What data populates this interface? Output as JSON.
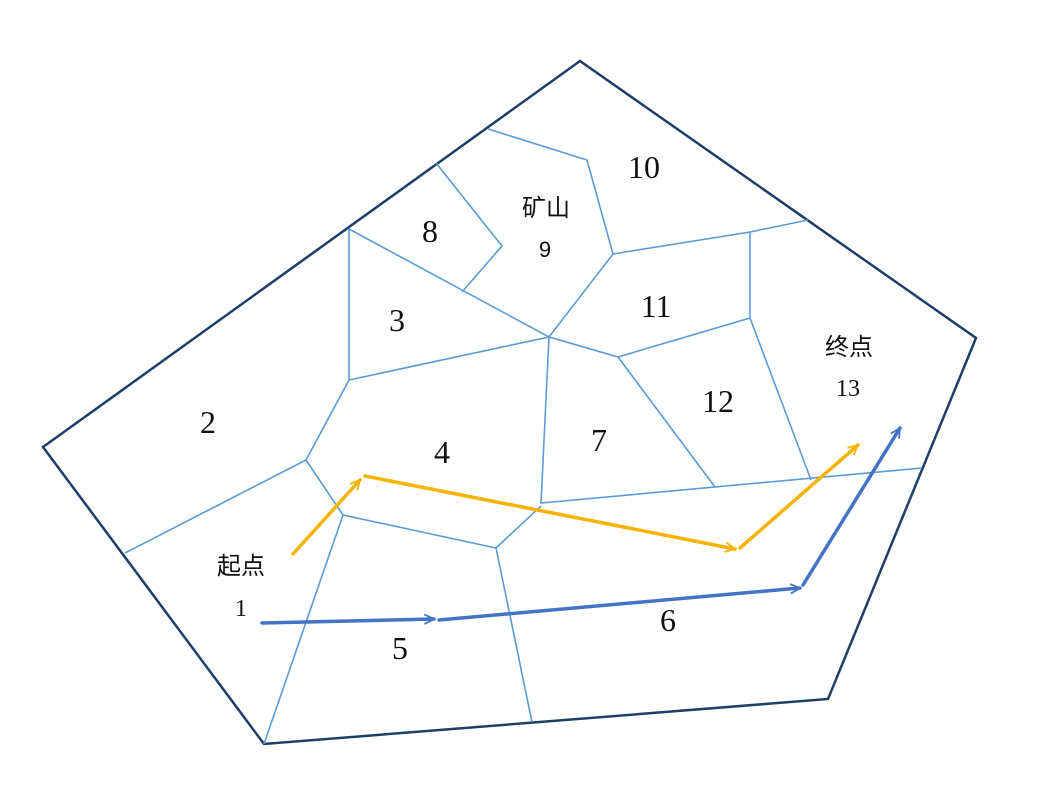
{
  "colors": {
    "outer_border": "#1f3e66",
    "inner_lines": "#5b9bd5",
    "yellow_route": "#f5b400",
    "blue_route": "#4472c4"
  },
  "regions": {
    "r1": "1",
    "r2": "2",
    "r3": "3",
    "r4": "4",
    "r5": "5",
    "r6": "6",
    "r7": "7",
    "r8": "8",
    "r9": "9",
    "r10": "10",
    "r11": "11",
    "r12": "12",
    "r13": "13"
  },
  "labels": {
    "start": "起点",
    "mine": "矿山",
    "end": "终点"
  }
}
